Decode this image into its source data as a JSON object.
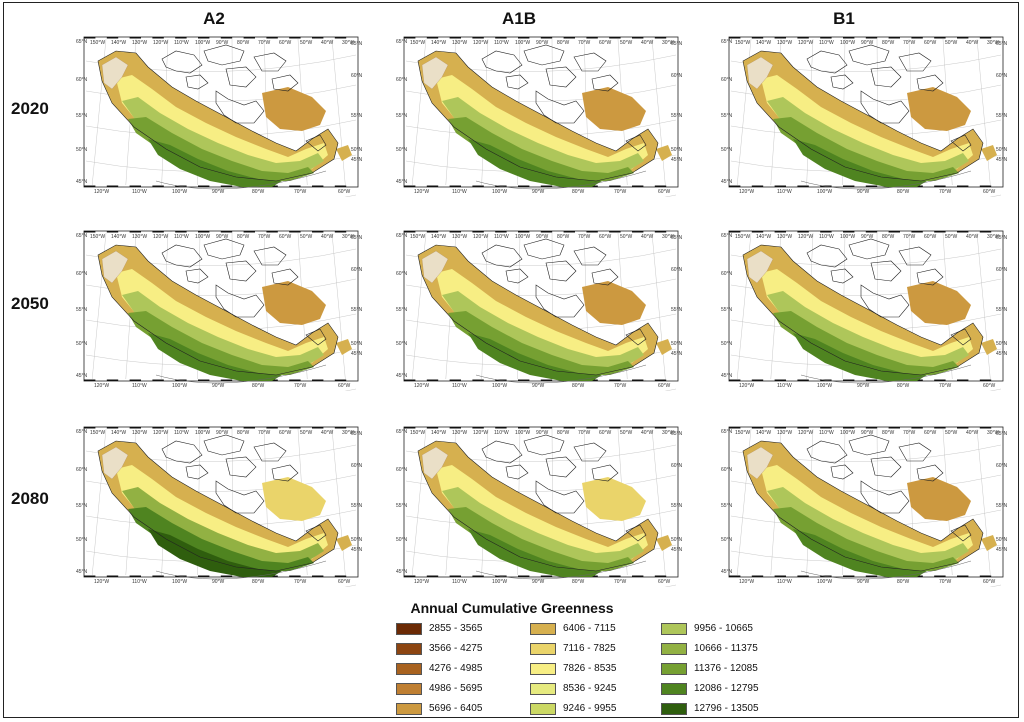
{
  "columns": [
    "A2",
    "A1B",
    "B1"
  ],
  "rows": [
    "2020",
    "2050",
    "2080"
  ],
  "legend": {
    "title": "Annual Cumulative Greenness",
    "classes": [
      {
        "label": "2855 - 3565",
        "color": "#6b2a05"
      },
      {
        "label": "3566 - 4275",
        "color": "#8c4511"
      },
      {
        "label": "4276 - 4985",
        "color": "#a8621f"
      },
      {
        "label": "4986 - 5695",
        "color": "#bf7f32"
      },
      {
        "label": "5696 - 6405",
        "color": "#cc9940"
      },
      {
        "label": "6406 - 7115",
        "color": "#d6b04f"
      },
      {
        "label": "7116 - 7825",
        "color": "#ead46a"
      },
      {
        "label": "7826 - 8535",
        "color": "#f7ee84"
      },
      {
        "label": "8536 - 9245",
        "color": "#e6ea7f"
      },
      {
        "label": "9246 - 9955",
        "color": "#cbd864"
      },
      {
        "label": "9956 - 10665",
        "color": "#aec65a"
      },
      {
        "label": "10666 - 11375",
        "color": "#92b143"
      },
      {
        "label": "11376 - 12085",
        "color": "#76a032"
      },
      {
        "label": "12086 - 12795",
        "color": "#4f8420"
      },
      {
        "label": "12796 - 13505",
        "color": "#2f5e0e"
      }
    ]
  },
  "map_axes": {
    "top_lon_labels": [
      "150°W",
      "140°W",
      "130°W",
      "120°W",
      "110°W",
      "100°W",
      "90°W",
      "80°W",
      "70°W",
      "60°W",
      "50°W",
      "40°W",
      "30°W"
    ],
    "bottom_lon_labels": [
      "120°W",
      "110°W",
      "100°W",
      "90°W",
      "80°W",
      "70°W",
      "60°W"
    ],
    "left_lat_labels": [
      "65°N",
      "60°N",
      "55°N",
      "50°N",
      "45°N"
    ],
    "right_lat_labels": [
      "65°N",
      "60°N",
      "55°N",
      "50°N",
      "45°N"
    ]
  },
  "dominant_class_by_panel": {
    "2020": {
      "A2": "11376 - 12085",
      "A1B": "11376 - 12085",
      "B1": "11376 - 12085"
    },
    "2050": {
      "A2": "11376 - 12085",
      "A1B": "11376 - 12085",
      "B1": "11376 - 12085"
    },
    "2080": {
      "A2": "12086 - 12795",
      "A1B": "11376 - 12085",
      "B1": "11376 - 12085"
    }
  }
}
